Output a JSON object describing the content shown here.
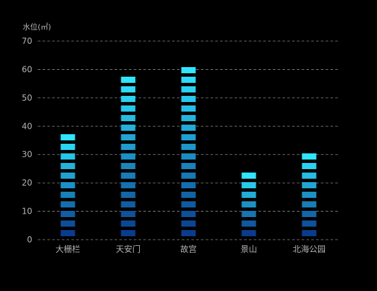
{
  "chart_data": {
    "type": "bar",
    "ylabel": "水位(㎡)",
    "categories": [
      "大栅栏",
      "天安门",
      "故宫",
      "景山",
      "北海公园"
    ],
    "values": [
      38,
      58.5,
      62,
      24,
      31
    ],
    "ylim": [
      0,
      70
    ],
    "yticks": [
      0,
      10,
      20,
      30,
      40,
      50,
      60,
      70
    ],
    "grid": true,
    "grid_style": "dashed",
    "bar_style": "segmented",
    "colors": {
      "background": "#000000",
      "grid": "#8a8a8a",
      "text": "#b5b5b5",
      "bar_bottom": "#0a3c8c",
      "bar_top": "#2ee6ff"
    }
  }
}
